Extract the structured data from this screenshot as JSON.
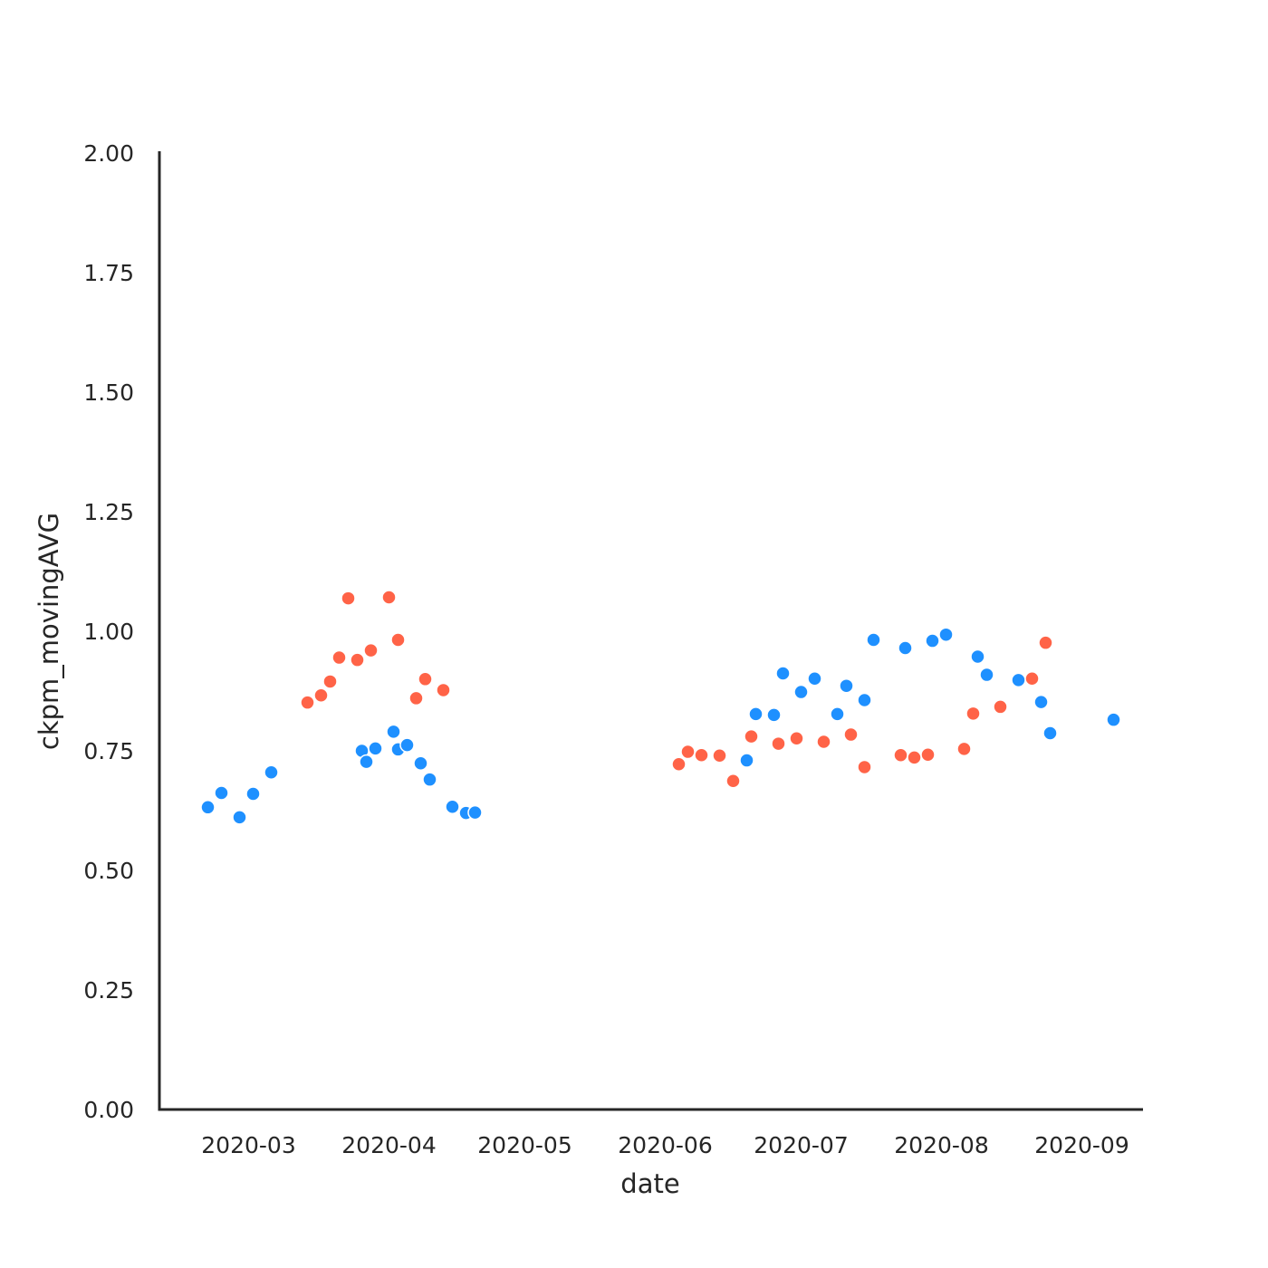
{
  "chart_data": {
    "type": "scatter",
    "title": "",
    "xlabel": "date",
    "ylabel": "ckpm_movingAVG",
    "xlim": [
      "2020-02-11",
      "2020-09-24"
    ],
    "ylim": [
      0,
      2
    ],
    "x_ticks": [
      "2020-03-01",
      "2020-04-01",
      "2020-05-01",
      "2020-06-01",
      "2020-07-01",
      "2020-08-01",
      "2020-09-01"
    ],
    "x_tick_labels": [
      "2020-03",
      "2020-04",
      "2020-05",
      "2020-06",
      "2020-07",
      "2020-08",
      "2020-09"
    ],
    "y_ticks": [
      0,
      0.25,
      0.5,
      0.75,
      1.0,
      1.25,
      1.5,
      1.75,
      2.0
    ],
    "y_tick_labels": [
      "0.00",
      "0.25",
      "0.50",
      "0.75",
      "1.00",
      "1.25",
      "1.50",
      "1.75",
      "2.00"
    ],
    "grid": false,
    "legend": "none",
    "series": [
      {
        "name": "blue",
        "color": "#1E90FF",
        "points": [
          [
            "2020-02-21",
            0.632
          ],
          [
            "2020-02-24",
            0.662
          ],
          [
            "2020-02-28",
            0.611
          ],
          [
            "2020-03-02",
            0.66
          ],
          [
            "2020-03-06",
            0.705
          ],
          [
            "2020-03-26",
            0.75
          ],
          [
            "2020-03-27",
            0.727
          ],
          [
            "2020-03-29",
            0.755
          ],
          [
            "2020-04-02",
            0.79
          ],
          [
            "2020-04-03",
            0.753
          ],
          [
            "2020-04-05",
            0.762
          ],
          [
            "2020-04-08",
            0.724
          ],
          [
            "2020-04-10",
            0.69
          ],
          [
            "2020-04-15",
            0.633
          ],
          [
            "2020-04-18",
            0.62
          ],
          [
            "2020-04-20",
            0.621
          ],
          [
            "2020-06-19",
            0.73
          ],
          [
            "2020-06-21",
            0.827
          ],
          [
            "2020-06-25",
            0.825
          ],
          [
            "2020-06-27",
            0.912
          ],
          [
            "2020-07-01",
            0.873
          ],
          [
            "2020-07-04",
            0.901
          ],
          [
            "2020-07-09",
            0.827
          ],
          [
            "2020-07-11",
            0.886
          ],
          [
            "2020-07-15",
            0.856
          ],
          [
            "2020-07-17",
            0.982
          ],
          [
            "2020-07-24",
            0.965
          ],
          [
            "2020-07-30",
            0.98
          ],
          [
            "2020-08-02",
            0.993
          ],
          [
            "2020-08-09",
            0.947
          ],
          [
            "2020-08-11",
            0.909
          ],
          [
            "2020-08-18",
            0.898
          ],
          [
            "2020-08-23",
            0.852
          ],
          [
            "2020-08-25",
            0.787
          ],
          [
            "2020-09-08",
            0.815
          ]
        ]
      },
      {
        "name": "red",
        "color": "#FF6347",
        "points": [
          [
            "2020-03-14",
            0.851
          ],
          [
            "2020-03-17",
            0.866
          ],
          [
            "2020-03-19",
            0.895
          ],
          [
            "2020-03-21",
            0.945
          ],
          [
            "2020-03-23",
            1.069
          ],
          [
            "2020-03-25",
            0.94
          ],
          [
            "2020-03-28",
            0.96
          ],
          [
            "2020-04-01",
            1.071
          ],
          [
            "2020-04-03",
            0.982
          ],
          [
            "2020-04-07",
            0.86
          ],
          [
            "2020-04-09",
            0.9
          ],
          [
            "2020-04-13",
            0.877
          ],
          [
            "2020-06-04",
            0.722
          ],
          [
            "2020-06-06",
            0.748
          ],
          [
            "2020-06-09",
            0.741
          ],
          [
            "2020-06-13",
            0.74
          ],
          [
            "2020-06-16",
            0.687
          ],
          [
            "2020-06-20",
            0.78
          ],
          [
            "2020-06-26",
            0.765
          ],
          [
            "2020-06-30",
            0.776
          ],
          [
            "2020-07-06",
            0.769
          ],
          [
            "2020-07-12",
            0.784
          ],
          [
            "2020-07-15",
            0.716
          ],
          [
            "2020-07-23",
            0.741
          ],
          [
            "2020-07-26",
            0.736
          ],
          [
            "2020-07-29",
            0.742
          ],
          [
            "2020-08-06",
            0.754
          ],
          [
            "2020-08-08",
            0.828
          ],
          [
            "2020-08-14",
            0.842
          ],
          [
            "2020-08-21",
            0.901
          ],
          [
            "2020-08-24",
            0.976
          ]
        ]
      }
    ]
  }
}
